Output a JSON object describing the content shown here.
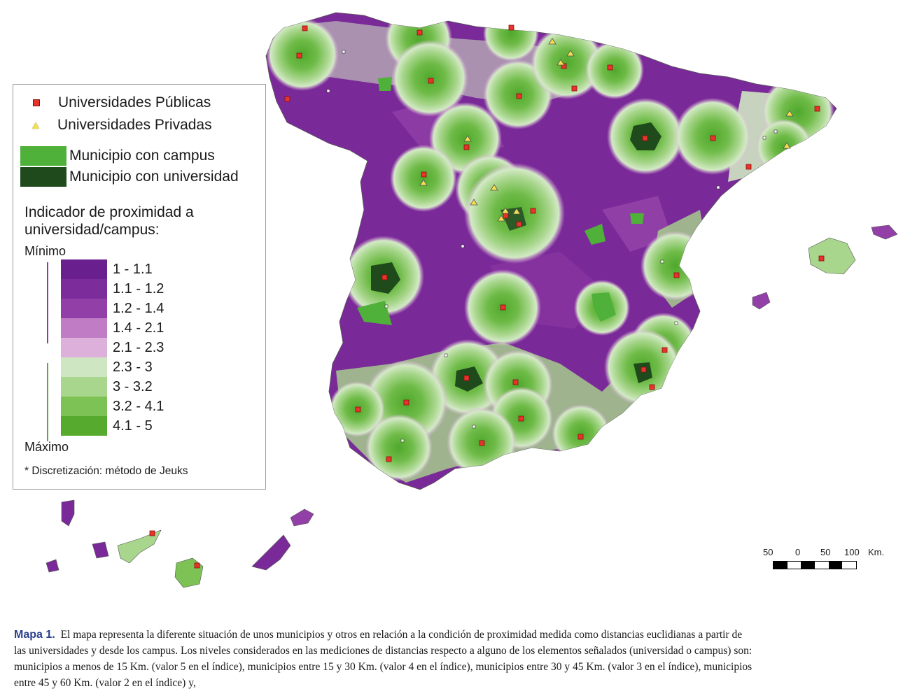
{
  "legend": {
    "public_label": "Universidades Públicas",
    "private_label": "Universidades Privadas",
    "campus_label": "Municipio con campus",
    "university_label": "Municipio con universidad",
    "indicator_title": "Indicador de proximidad a universidad/campus:",
    "min_label": "Mínimo",
    "max_label": "Máximo",
    "note": "* Discretización: método de Jeuks",
    "classes": [
      {
        "label": "1 - 1.1",
        "color": "#6a1f8e"
      },
      {
        "label": "1.1 - 1.2",
        "color": "#7d2d9b"
      },
      {
        "label": "1.2 - 1.4",
        "color": "#9240a8"
      },
      {
        "label": "1.4 - 2.1",
        "color": "#c07cc4"
      },
      {
        "label": "2.1 - 2.3",
        "color": "#ddb0dc"
      },
      {
        "label": "2.3 - 3",
        "color": "#cfe6c2"
      },
      {
        "label": "3 - 3.2",
        "color": "#a8d68c"
      },
      {
        "label": "3.2 - 4.1",
        "color": "#7cc255"
      },
      {
        "label": "4.1 - 5",
        "color": "#56ab2e"
      }
    ],
    "campus_color": "#4fb03a",
    "university_color": "#1f4a1c",
    "public_color": "#e8332b",
    "private_color": "#f4e04d"
  },
  "scale": {
    "labels": [
      "50",
      "0",
      "50",
      "100",
      "Km."
    ]
  },
  "caption": {
    "label": "Mapa 1.",
    "text": "El mapa representa la diferente situación de unos municipios y otros en relación a la condición de proximidad medida como distancias euclidianas a partir de las universidades y desde los campus. Los niveles considerados en las mediciones de distancias respecto a alguno de los elementos señalados (universidad o campus) son: municipios a menos de 15 Km. (valor 5 en el índice), municipios entre 15 y 30 Km. (valor 4 en el índice), municipios entre 30 y 45 Km. (valor 3 en el índice), municipios entre 45 y 60 Km. (valor 2 en el índice) y,"
  }
}
